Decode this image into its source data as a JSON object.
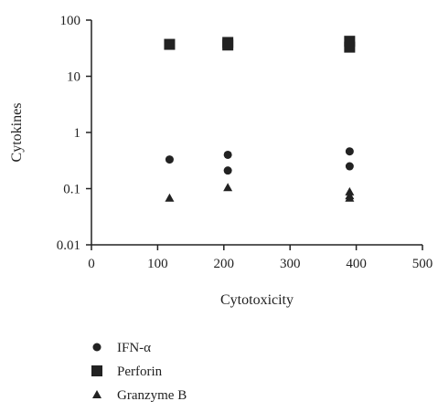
{
  "chart_data": {
    "type": "scatter",
    "xlabel": "Cytotoxicity",
    "ylabel": "Cytokines",
    "xlim": [
      0,
      500
    ],
    "ylim": [
      0.01,
      100
    ],
    "y_scale": "log",
    "x_ticks": [
      0,
      100,
      200,
      300,
      400,
      500
    ],
    "y_ticks": [
      0.01,
      0.1,
      1,
      10,
      100
    ],
    "y_tick_labels": [
      "0.01",
      "0.1",
      "1",
      "10",
      "100"
    ],
    "grid": false,
    "legend_position": "bottom",
    "series": [
      {
        "name": "IFN-α",
        "marker": "circle",
        "color": "#222222",
        "points": [
          {
            "x": 118,
            "y": 0.33
          },
          {
            "x": 206,
            "y": 0.4
          },
          {
            "x": 206,
            "y": 0.21
          },
          {
            "x": 390,
            "y": 0.46
          },
          {
            "x": 390,
            "y": 0.25
          }
        ]
      },
      {
        "name": "Perforin",
        "marker": "square",
        "color": "#222222",
        "points": [
          {
            "x": 118,
            "y": 37
          },
          {
            "x": 206,
            "y": 40
          },
          {
            "x": 206,
            "y": 36
          },
          {
            "x": 390,
            "y": 42
          },
          {
            "x": 390,
            "y": 33
          }
        ]
      },
      {
        "name": "Granzyme B",
        "marker": "triangle",
        "color": "#222222",
        "points": [
          {
            "x": 118,
            "y": 0.068
          },
          {
            "x": 206,
            "y": 0.105
          },
          {
            "x": 390,
            "y": 0.088
          },
          {
            "x": 390,
            "y": 0.075
          },
          {
            "x": 390,
            "y": 0.068
          }
        ]
      }
    ]
  }
}
